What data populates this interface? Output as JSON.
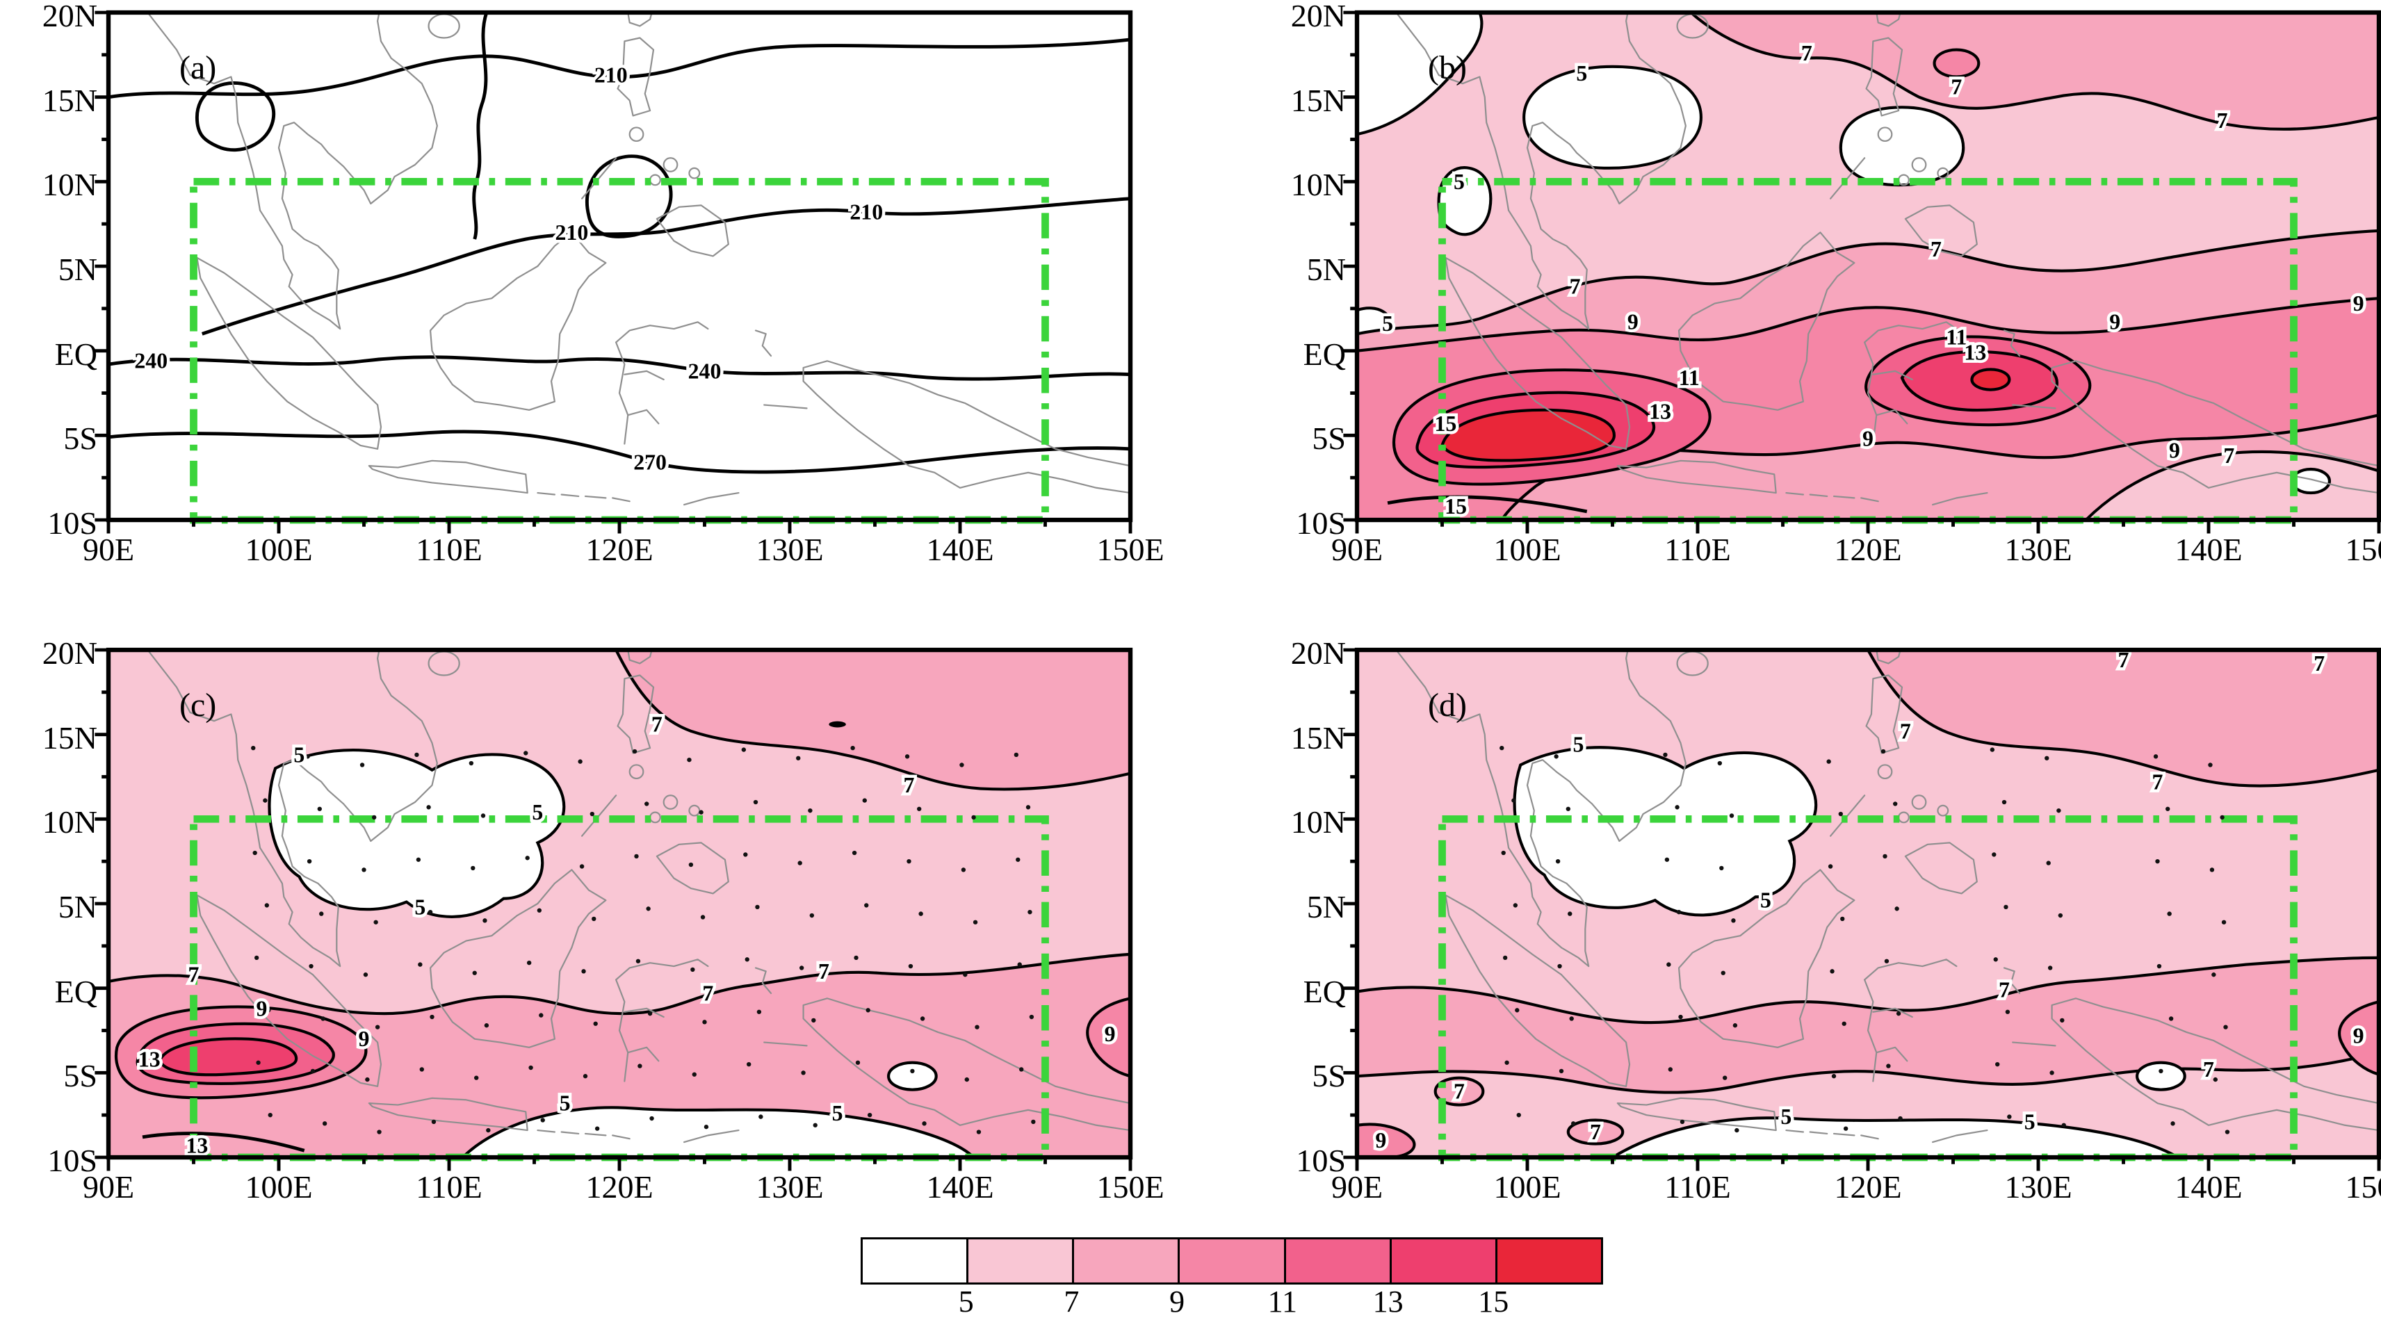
{
  "axes": {
    "x_tick_labels": [
      "90E",
      "100E",
      "110E",
      "120E",
      "130E",
      "140E",
      "150E"
    ],
    "x_tick_lons": [
      90,
      100,
      110,
      120,
      130,
      140,
      150
    ],
    "y_tick_labels": [
      "20N",
      "15N",
      "10N",
      "5N",
      "EQ",
      "5S",
      "10S"
    ],
    "y_tick_lats": [
      20,
      15,
      10,
      5,
      0,
      -5,
      -10
    ]
  },
  "colorbar": {
    "tick_labels": [
      "5",
      "7",
      "9",
      "11",
      "13",
      "15"
    ],
    "levels": [
      5,
      7,
      9,
      11,
      13,
      15
    ],
    "colors": [
      "#ffffff",
      "#f9c6d4",
      "#f7a6bd",
      "#f586a6",
      "#f2618c",
      "#ee3f6e",
      "#e92639"
    ]
  },
  "highlight_box": {
    "lon_min": 95,
    "lon_max": 145,
    "lat_min": -10,
    "lat_max": 10,
    "color": "#3bd43b"
  },
  "chart_data": {
    "type": "heatmap",
    "subtype": "filled-contour-map-panels",
    "lon_range": [
      90,
      150
    ],
    "lat_range": [
      -10,
      20
    ],
    "panels": [
      {
        "id": "a",
        "label": "(a)",
        "style": "line-contours",
        "contour_levels": [
          210,
          240,
          270
        ],
        "contour_interval": 30,
        "stippled": false,
        "labels": [
          {
            "v": "210",
            "lon": 119.5,
            "lat": 16.3
          },
          {
            "v": "210",
            "lon": 117.2,
            "lat": 7.0
          },
          {
            "v": "210",
            "lon": 134.5,
            "lat": 8.2
          },
          {
            "v": "240",
            "lon": 92.5,
            "lat": -0.6
          },
          {
            "v": "240",
            "lon": 125.0,
            "lat": -1.2
          },
          {
            "v": "270",
            "lon": 121.8,
            "lat": -6.6
          }
        ]
      },
      {
        "id": "b",
        "label": "(b)",
        "style": "filled-contours",
        "contour_levels": [
          5,
          7,
          9,
          11,
          13,
          15
        ],
        "stippled": false,
        "max_regions": [
          {
            "value_gt": 15,
            "lon": 97,
            "lat": -6
          },
          {
            "value": 13,
            "lon": 127,
            "lat": -1
          }
        ],
        "labels": [
          {
            "v": "5",
            "lon": 103.2,
            "lat": 16.4
          },
          {
            "v": "5",
            "lon": 96.0,
            "lat": 10.0
          },
          {
            "v": "5",
            "lon": 91.8,
            "lat": 1.6
          },
          {
            "v": "7",
            "lon": 116.4,
            "lat": 17.6
          },
          {
            "v": "7",
            "lon": 140.8,
            "lat": 13.6
          },
          {
            "v": "7",
            "lon": 125.2,
            "lat": 15.6
          },
          {
            "v": "7",
            "lon": 102.8,
            "lat": 3.8
          },
          {
            "v": "7",
            "lon": 124.0,
            "lat": 6.0
          },
          {
            "v": "7",
            "lon": 141.2,
            "lat": -6.2
          },
          {
            "v": "9",
            "lon": 106.2,
            "lat": 1.7
          },
          {
            "v": "9",
            "lon": 134.5,
            "lat": 1.7
          },
          {
            "v": "9",
            "lon": 148.8,
            "lat": 2.8
          },
          {
            "v": "9",
            "lon": 120.0,
            "lat": -5.2
          },
          {
            "v": "9",
            "lon": 138.0,
            "lat": -5.9
          },
          {
            "v": "11",
            "lon": 109.5,
            "lat": -1.6
          },
          {
            "v": "11",
            "lon": 125.2,
            "lat": 0.8
          },
          {
            "v": "13",
            "lon": 107.8,
            "lat": -3.6
          },
          {
            "v": "13",
            "lon": 126.3,
            "lat": -0.1
          },
          {
            "v": "15",
            "lon": 95.2,
            "lat": -4.3
          },
          {
            "v": "15",
            "lon": 95.8,
            "lat": -9.2
          }
        ]
      },
      {
        "id": "c",
        "label": "(c)",
        "style": "filled-contours",
        "contour_levels": [
          5,
          7,
          9,
          11,
          13,
          15
        ],
        "stippled": true,
        "max_regions": [
          {
            "value": 13,
            "lon": 95,
            "lat": -5
          }
        ],
        "labels": [
          {
            "v": "5",
            "lon": 101.2,
            "lat": 13.8
          },
          {
            "v": "5",
            "lon": 115.2,
            "lat": 10.4
          },
          {
            "v": "5",
            "lon": 108.3,
            "lat": 4.8
          },
          {
            "v": "5",
            "lon": 116.8,
            "lat": -6.8
          },
          {
            "v": "5",
            "lon": 132.8,
            "lat": -7.4
          },
          {
            "v": "7",
            "lon": 122.2,
            "lat": 15.6
          },
          {
            "v": "7",
            "lon": 137.0,
            "lat": 12.0
          },
          {
            "v": "7",
            "lon": 95.0,
            "lat": 0.8
          },
          {
            "v": "7",
            "lon": 125.2,
            "lat": -0.3
          },
          {
            "v": "7",
            "lon": 132.0,
            "lat": 1.0
          },
          {
            "v": "9",
            "lon": 99.0,
            "lat": -1.2
          },
          {
            "v": "9",
            "lon": 105.0,
            "lat": -3.0
          },
          {
            "v": "9",
            "lon": 148.8,
            "lat": -2.7
          },
          {
            "v": "13",
            "lon": 92.4,
            "lat": -4.2
          },
          {
            "v": "13",
            "lon": 95.2,
            "lat": -9.3
          }
        ]
      },
      {
        "id": "d",
        "label": "(d)",
        "style": "filled-contours",
        "contour_levels": [
          5,
          7,
          9,
          11,
          13,
          15
        ],
        "stippled": true,
        "max_regions": [
          {
            "value": 7,
            "lon": 96,
            "lat": -6
          }
        ],
        "labels": [
          {
            "v": "5",
            "lon": 103.0,
            "lat": 14.4
          },
          {
            "v": "5",
            "lon": 114.0,
            "lat": 5.2
          },
          {
            "v": "5",
            "lon": 115.2,
            "lat": -7.6
          },
          {
            "v": "5",
            "lon": 129.5,
            "lat": -7.9
          },
          {
            "v": "7",
            "lon": 122.2,
            "lat": 15.2
          },
          {
            "v": "7",
            "lon": 137.0,
            "lat": 12.2
          },
          {
            "v": "7",
            "lon": 135.0,
            "lat": 19.4
          },
          {
            "v": "7",
            "lon": 146.5,
            "lat": 19.2
          },
          {
            "v": "7",
            "lon": 128.0,
            "lat": -0.1
          },
          {
            "v": "7",
            "lon": 140.0,
            "lat": -4.8
          },
          {
            "v": "7",
            "lon": 96.0,
            "lat": -6.1
          },
          {
            "v": "7",
            "lon": 104.0,
            "lat": -8.5
          },
          {
            "v": "9",
            "lon": 91.4,
            "lat": -9.0
          },
          {
            "v": "9",
            "lon": 148.8,
            "lat": -2.8
          }
        ]
      }
    ]
  }
}
